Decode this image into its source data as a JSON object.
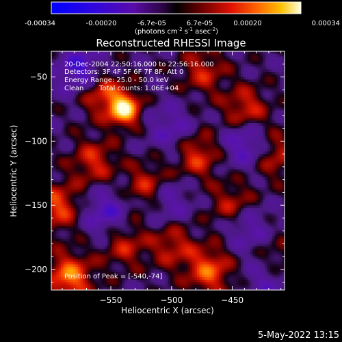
{
  "colorbar": {
    "ticks": [
      "-0.00034",
      "-0.00020",
      "-6.7e-05",
      "6.7e-05",
      "0.00020",
      "0.00034"
    ],
    "unit_main": "(photons cm",
    "unit_exp1": "-2",
    "unit_mid": " s",
    "unit_exp2": "-1",
    "unit_end": " asec",
    "unit_exp3": "-2",
    "unit_close": ")",
    "range": [
      -0.00034,
      0.00034
    ]
  },
  "chart_data": {
    "type": "heatmap",
    "title": "Reconstructed RHESSI Image",
    "xlabel": "Heliocentric X (arcsec)",
    "ylabel": "Heliocentric Y (arcsec)",
    "xticks": [
      -550,
      -500,
      -450
    ],
    "yticks": [
      -50,
      -100,
      -150,
      -200
    ],
    "xlim": [
      -599,
      -407
    ],
    "ylim": [
      -216,
      -30
    ],
    "peak": {
      "x": -540,
      "y": -74
    },
    "hotspots": [
      {
        "x": -540,
        "y": -74,
        "v": 1.0
      },
      {
        "x": -560,
        "y": -60,
        "v": 0.55
      },
      {
        "x": -585,
        "y": -205,
        "v": 0.7
      },
      {
        "x": -470,
        "y": -200,
        "v": 0.6
      },
      {
        "x": -595,
        "y": -150,
        "v": 0.55
      },
      {
        "x": -480,
        "y": -110,
        "v": 0.5
      },
      {
        "x": -440,
        "y": -75,
        "v": 0.5
      },
      {
        "x": -520,
        "y": -135,
        "v": 0.5
      },
      {
        "x": -450,
        "y": -150,
        "v": 0.45
      },
      {
        "x": -565,
        "y": -115,
        "v": 0.45
      },
      {
        "x": -415,
        "y": -195,
        "v": 0.45
      },
      {
        "x": -500,
        "y": -180,
        "v": 0.4
      },
      {
        "x": -415,
        "y": -110,
        "v": 0.4
      },
      {
        "x": -540,
        "y": -180,
        "v": 0.4
      },
      {
        "x": -475,
        "y": -45,
        "v": 0.4
      }
    ],
    "coldspots": [
      {
        "x": -575,
        "y": -45,
        "v": -0.6
      },
      {
        "x": -440,
        "y": -100,
        "v": -0.5
      },
      {
        "x": -555,
        "y": -155,
        "v": -0.45
      },
      {
        "x": -505,
        "y": -145,
        "v": -0.4
      },
      {
        "x": -420,
        "y": -205,
        "v": -0.5
      },
      {
        "x": -500,
        "y": -90,
        "v": -0.35
      },
      {
        "x": -440,
        "y": -165,
        "v": -0.4
      }
    ]
  },
  "annotations": {
    "time": "20-Dec-2004 22:50:16.000 to 22:56:16.000",
    "detectors": "Detectors: 3F 4F 5F 6F 7F 8F, Att 0",
    "energy": "Energy Range: 25.0 - 50.0 keV",
    "clean": "Clean",
    "counts": "Total counts: 1.06E+04",
    "peak": "Position of Peak = [-540,-74]"
  },
  "footer": {
    "timestamp": "5-May-2022 13:15"
  }
}
